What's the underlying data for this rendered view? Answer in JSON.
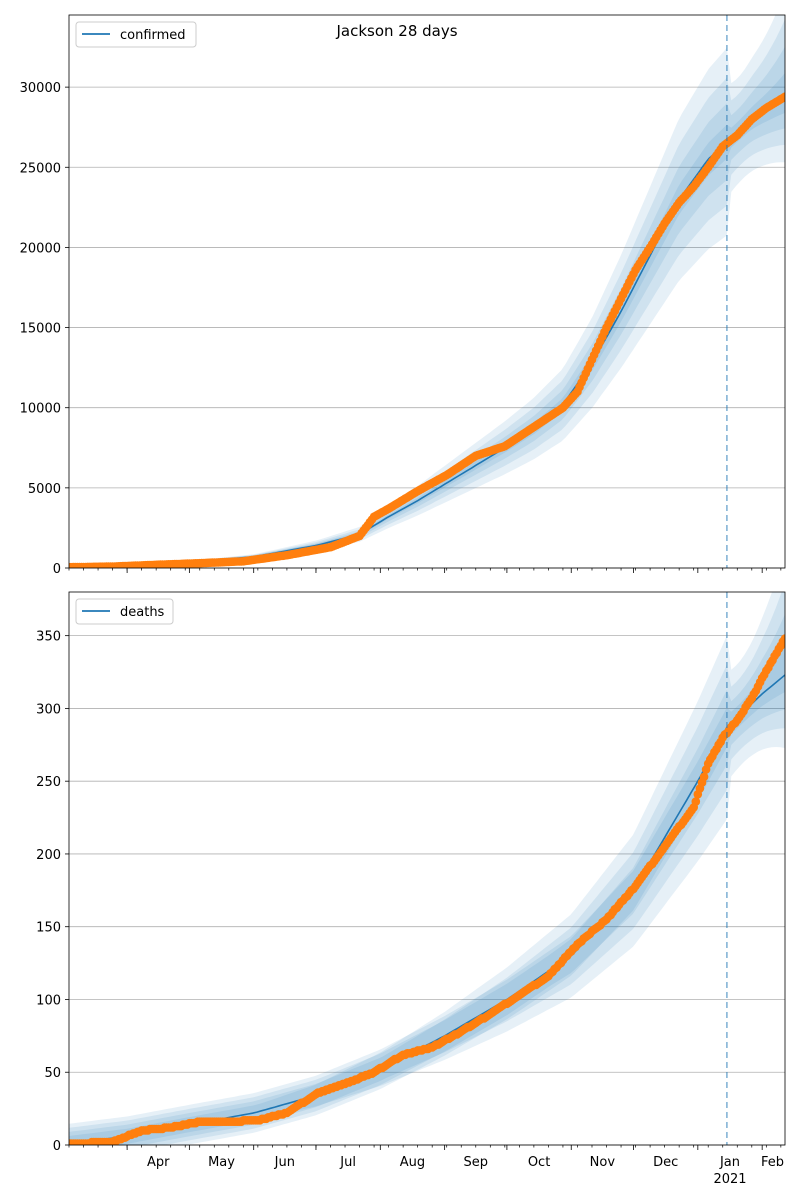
{
  "title": "Jackson 28 days",
  "colors": {
    "model_line": "#1f77b4",
    "observed": "#ff7f0e",
    "band": "#1f77b4",
    "grid": "#b0b0b0",
    "forecast_line": "#1f77b4"
  },
  "x_axis": {
    "tick_labels": [
      "Apr",
      "May",
      "Jun",
      "Jul",
      "Aug",
      "Sep",
      "Oct",
      "Nov",
      "Dec",
      "Jan",
      "Feb"
    ],
    "year_label": "2021",
    "range": [
      "2020-03-04",
      "2021-02-12"
    ],
    "forecast_start": "2021-01-15"
  },
  "chart_data": [
    {
      "type": "line",
      "legend": "confirmed",
      "legend_position": "upper-left",
      "ylim": [
        0,
        34500
      ],
      "yticks": [
        0,
        5000,
        10000,
        15000,
        20000,
        25000,
        30000
      ],
      "grid": true,
      "observed": {
        "x": [
          "2020-03-04",
          "2020-03-25",
          "2020-04-15",
          "2020-05-06",
          "2020-05-27",
          "2020-06-17",
          "2020-07-08",
          "2020-07-22",
          "2020-07-29",
          "2020-08-05",
          "2020-08-19",
          "2020-09-02",
          "2020-09-16",
          "2020-09-30",
          "2020-10-14",
          "2020-10-28",
          "2020-11-04",
          "2020-11-11",
          "2020-11-18",
          "2020-11-25",
          "2020-12-02",
          "2020-12-09",
          "2020-12-16",
          "2020-12-23",
          "2020-12-30",
          "2021-01-06",
          "2021-01-13",
          "2021-01-20",
          "2021-01-27",
          "2021-02-03",
          "2021-02-12"
        ],
        "y": [
          50,
          90,
          200,
          300,
          420,
          800,
          1300,
          2000,
          3200,
          3700,
          4800,
          5800,
          7000,
          7600,
          8800,
          10000,
          11000,
          13000,
          15000,
          16800,
          18600,
          20000,
          21500,
          22800,
          23800,
          25000,
          26300,
          27000,
          28000,
          28700,
          29400
        ]
      },
      "model": {
        "x": [
          "2020-03-04",
          "2020-04-01",
          "2020-05-01",
          "2020-06-01",
          "2020-07-01",
          "2020-07-22",
          "2020-08-05",
          "2020-08-19",
          "2020-09-02",
          "2020-09-16",
          "2020-09-30",
          "2020-10-14",
          "2020-10-28",
          "2020-11-11",
          "2020-11-25",
          "2020-12-09",
          "2020-12-23",
          "2021-01-06",
          "2021-01-15",
          "2021-01-27",
          "2021-02-12"
        ],
        "y": [
          50,
          150,
          350,
          700,
          1400,
          2100,
          3200,
          4200,
          5300,
          6400,
          7500,
          8700,
          10200,
          12800,
          16000,
          19500,
          23000,
          25500,
          26600,
          28000,
          29300
        ]
      }
    },
    {
      "type": "line",
      "legend": "deaths",
      "legend_position": "upper-left",
      "ylim": [
        0,
        380
      ],
      "yticks": [
        0,
        50,
        100,
        150,
        200,
        250,
        300,
        350
      ],
      "grid": true,
      "observed": {
        "x": [
          "2020-03-04",
          "2020-03-25",
          "2020-04-08",
          "2020-04-22",
          "2020-05-06",
          "2020-05-20",
          "2020-06-03",
          "2020-06-17",
          "2020-07-01",
          "2020-07-15",
          "2020-07-29",
          "2020-08-12",
          "2020-08-26",
          "2020-09-09",
          "2020-09-23",
          "2020-10-07",
          "2020-10-21",
          "2020-11-04",
          "2020-11-18",
          "2020-12-02",
          "2020-12-16",
          "2020-12-30",
          "2021-01-06",
          "2021-01-13",
          "2021-01-20",
          "2021-01-27",
          "2021-02-03",
          "2021-02-12"
        ],
        "y": [
          1,
          2,
          10,
          12,
          16,
          16,
          17,
          22,
          35,
          42,
          50,
          62,
          67,
          78,
          90,
          103,
          116,
          138,
          155,
          178,
          205,
          232,
          262,
          280,
          292,
          307,
          326,
          348
        ]
      },
      "model": {
        "x": [
          "2020-03-04",
          "2020-04-01",
          "2020-05-01",
          "2020-06-01",
          "2020-07-01",
          "2020-08-01",
          "2020-09-01",
          "2020-10-01",
          "2020-11-01",
          "2020-12-01",
          "2021-01-01",
          "2021-01-15",
          "2021-02-01",
          "2021-02-12"
        ],
        "y": [
          1,
          6,
          14,
          22,
          34,
          52,
          75,
          100,
          130,
          175,
          250,
          287,
          310,
          323
        ]
      }
    }
  ]
}
